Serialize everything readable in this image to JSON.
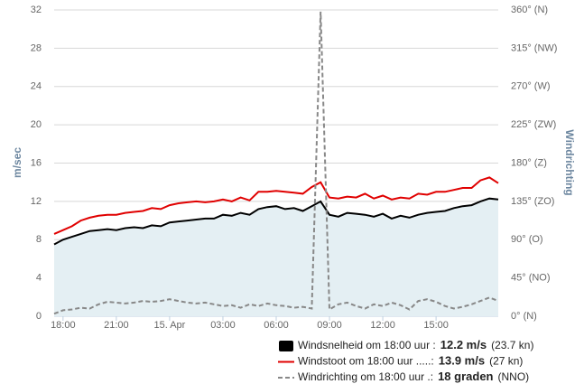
{
  "chart_data": {
    "type": "line",
    "ylabel": "m/sec",
    "y2label": "Windrichting",
    "categories": [
      null,
      "18:00",
      null,
      null,
      null,
      null,
      null,
      "21:00",
      null,
      null,
      null,
      null,
      null,
      "15. Apr",
      null,
      null,
      null,
      null,
      null,
      "03:00",
      null,
      null,
      null,
      null,
      null,
      "06:00",
      null,
      null,
      null,
      null,
      null,
      "09:00",
      null,
      null,
      null,
      null,
      null,
      "12:00",
      null,
      null,
      null,
      null,
      null,
      "15:00",
      null,
      null,
      null,
      null,
      null,
      null,
      null
    ],
    "ylim": [
      0,
      32
    ],
    "yticks": [
      0,
      4,
      8,
      12,
      16,
      20,
      24,
      28,
      32
    ],
    "y2lim": [
      0,
      360
    ],
    "y2ticks": [
      {
        "value": 0,
        "label": "0° (N)"
      },
      {
        "value": 45,
        "label": "45° (NO)"
      },
      {
        "value": 90,
        "label": "90° (O)"
      },
      {
        "value": 135,
        "label": "135° (ZO)"
      },
      {
        "value": 180,
        "label": "180° (Z)"
      },
      {
        "value": 225,
        "label": "225° (ZW)"
      },
      {
        "value": 270,
        "label": "270° (W)"
      },
      {
        "value": 315,
        "label": "315° (NW)"
      },
      {
        "value": 360,
        "label": "360° (N)"
      }
    ],
    "grid": true,
    "series": [
      {
        "name": "Windsnelheid om 18:00 uur :",
        "legend_value": "12.2 m/s",
        "legend_note": "(23.7 kn)",
        "color": "#000000",
        "area": "#e4eff3",
        "values": [
          7.5,
          8.0,
          8.3,
          8.6,
          8.9,
          9.0,
          9.1,
          9.0,
          9.2,
          9.3,
          9.2,
          9.5,
          9.4,
          9.8,
          9.9,
          10.0,
          10.1,
          10.2,
          10.2,
          10.6,
          10.5,
          10.8,
          10.6,
          11.2,
          11.4,
          11.5,
          11.2,
          11.3,
          11.0,
          11.5,
          12.0,
          10.6,
          10.4,
          10.8,
          10.7,
          10.6,
          10.4,
          10.7,
          10.2,
          10.5,
          10.3,
          10.6,
          10.8,
          10.9,
          11.0,
          11.3,
          11.5,
          11.6,
          12.0,
          12.3,
          12.2
        ]
      },
      {
        "name": "Windstoot om 18:00 uur .....:",
        "legend_value": "13.9 m/s",
        "legend_note": "(27 kn)",
        "color": "#e00000",
        "values": [
          8.6,
          9.0,
          9.4,
          10.0,
          10.3,
          10.5,
          10.6,
          10.6,
          10.8,
          10.9,
          11.0,
          11.3,
          11.2,
          11.6,
          11.8,
          11.9,
          12.0,
          11.9,
          12.0,
          12.2,
          12.0,
          12.4,
          12.1,
          13.0,
          13.0,
          13.1,
          13.0,
          12.9,
          12.8,
          13.5,
          14.0,
          12.4,
          12.3,
          12.5,
          12.4,
          12.8,
          12.3,
          12.6,
          12.2,
          12.4,
          12.3,
          12.8,
          12.7,
          13.0,
          13.0,
          13.2,
          13.4,
          13.4,
          14.2,
          14.5,
          13.9
        ]
      },
      {
        "name": "Windrichting om 18:00 uur .:",
        "legend_value": "18 graden",
        "legend_note": "(NNO)",
        "color": "#888888",
        "dashed": true,
        "axis": "y2",
        "values": [
          3,
          7,
          8,
          10,
          9,
          14,
          17,
          16,
          15,
          16,
          18,
          17,
          18,
          20,
          18,
          16,
          15,
          16,
          14,
          12,
          13,
          10,
          14,
          12,
          15,
          13,
          12,
          10,
          11,
          9,
          358,
          8,
          14,
          16,
          12,
          9,
          14,
          12,
          16,
          13,
          8,
          18,
          20,
          17,
          12,
          9,
          11,
          14,
          18,
          22,
          18
        ]
      }
    ]
  }
}
